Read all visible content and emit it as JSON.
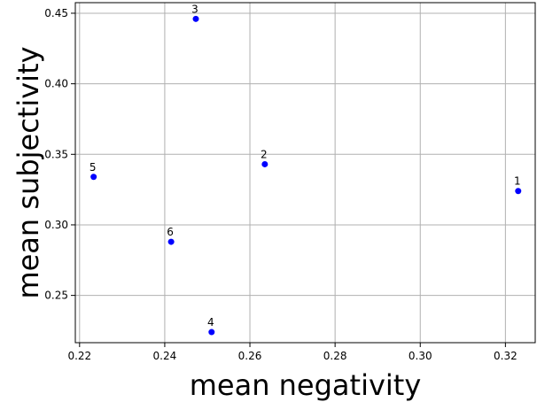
{
  "chart_data": {
    "type": "scatter",
    "xlabel": "mean negativity",
    "ylabel": "mean subjectivity",
    "xlim": [
      0.219,
      0.327
    ],
    "ylim": [
      0.2165,
      0.4575
    ],
    "xticks": [
      0.22,
      0.24,
      0.26,
      0.28,
      0.3,
      0.32
    ],
    "xtick_labels": [
      "0.22",
      "0.24",
      "0.26",
      "0.28",
      "0.30",
      "0.32"
    ],
    "yticks": [
      0.25,
      0.3,
      0.35,
      0.4,
      0.45
    ],
    "ytick_labels": [
      "0.25",
      "0.30",
      "0.35",
      "0.40",
      "0.45"
    ],
    "grid": true,
    "marker_color": "#0000ff",
    "points": [
      {
        "label": "1",
        "x": 0.323,
        "y": 0.324
      },
      {
        "label": "2",
        "x": 0.2635,
        "y": 0.343
      },
      {
        "label": "3",
        "x": 0.2473,
        "y": 0.446
      },
      {
        "label": "4",
        "x": 0.251,
        "y": 0.224
      },
      {
        "label": "5",
        "x": 0.2233,
        "y": 0.334
      },
      {
        "label": "6",
        "x": 0.2415,
        "y": 0.288
      }
    ]
  }
}
